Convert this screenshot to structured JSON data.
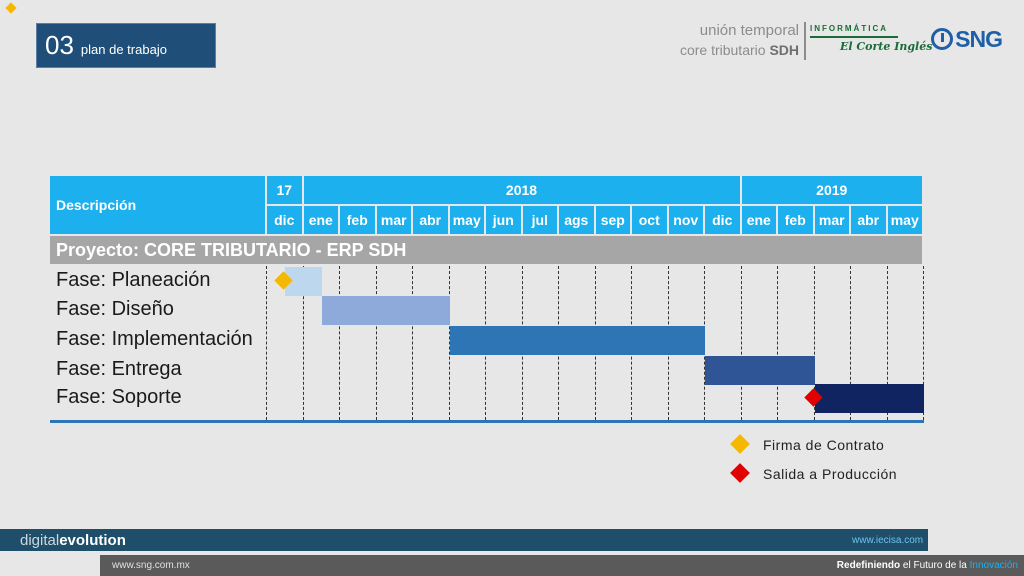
{
  "header": {
    "section_number": "03",
    "section_title": "plan de trabajo"
  },
  "branding": {
    "line1": "unión temporal",
    "line2_prefix": "core tributario ",
    "line2_bold": "SDH",
    "partner1_top": "INFORMÁTICA",
    "partner1_bottom": "El Corte Inglés",
    "partner2": "SNG"
  },
  "gantt": {
    "desc_header": "Descripción",
    "years": [
      {
        "label": "17"
      },
      {
        "label": "2018"
      },
      {
        "label": "2019"
      }
    ],
    "months": [
      "dic",
      "ene",
      "feb",
      "mar",
      "abr",
      "may",
      "jun",
      "jul",
      "ags",
      "sep",
      "oct",
      "nov",
      "dic",
      "ene",
      "feb",
      "mar",
      "abr",
      "may"
    ],
    "project": "Proyecto: CORE TRIBUTARIO - ERP SDH",
    "phases": [
      {
        "label": "Fase: Planeación",
        "start_month": 0.5,
        "end_month": 1.5,
        "color": "#bdd7ee"
      },
      {
        "label": "Fase: Diseño",
        "start_month": 1.5,
        "end_month": 5,
        "color": "#8eaadb"
      },
      {
        "label": "Fase: Implementación",
        "start_month": 5,
        "end_month": 12,
        "color": "#2e75b6"
      },
      {
        "label": "Fase: Entrega",
        "start_month": 12,
        "end_month": 15,
        "color": "#2f5597"
      },
      {
        "label": "Fase: Soporte",
        "start_month": 15,
        "end_month": 18,
        "color": "#0f2460"
      }
    ],
    "milestones": [
      {
        "name": "Firma de Contrato",
        "month": 0.5,
        "phase_index": 0,
        "color": "#f5b800"
      },
      {
        "name": "Salida a Producción",
        "month": 15,
        "phase_index": 4,
        "color": "#e00000"
      }
    ]
  },
  "legend": [
    {
      "label": "Firma de Contrato",
      "color": "#f5b800"
    },
    {
      "label": "Salida a Producción",
      "color": "#e00000"
    }
  ],
  "footer": {
    "brand_light": "digital",
    "brand_bold": "evolution",
    "website1": "www.iecisa.com",
    "website2": "www.sng.com.mx",
    "tagline_bold": "Redefiniendo",
    "tagline_mid": " el Futuro de la ",
    "tagline_accent": "Innovación"
  }
}
